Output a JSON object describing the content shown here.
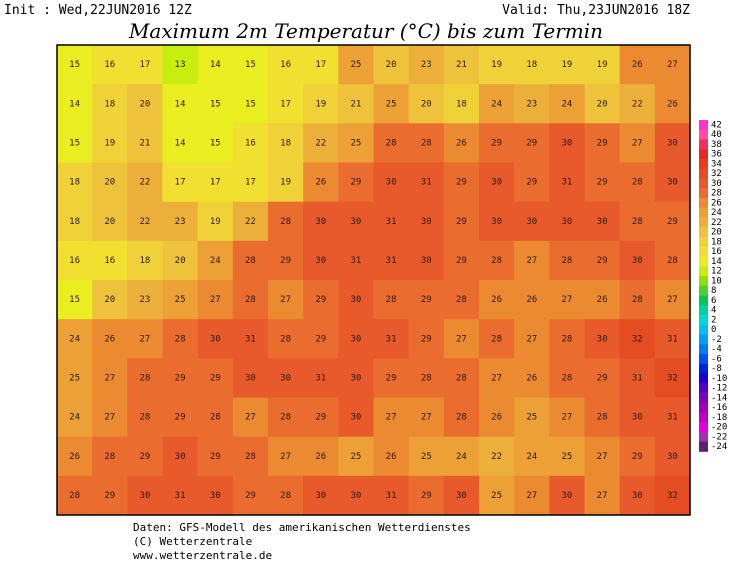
{
  "header": {
    "init": "Init : Wed,22JUN2016 12Z",
    "valid": "Valid: Thu,23JUN2016 18Z",
    "title": "Maximum 2m Temperatur (°C) bis zum Termin"
  },
  "map": {
    "values": [
      [
        15,
        16,
        17,
        13,
        14,
        15,
        16,
        17,
        25,
        20,
        23,
        21,
        19,
        18,
        19,
        19,
        26,
        27
      ],
      [
        14,
        18,
        20,
        14,
        15,
        15,
        17,
        19,
        21,
        25,
        20,
        18,
        24,
        23,
        24,
        20,
        22,
        26
      ],
      [
        15,
        19,
        21,
        14,
        15,
        16,
        18,
        22,
        25,
        28,
        28,
        26,
        29,
        29,
        30,
        29,
        27,
        30
      ],
      [
        18,
        20,
        22,
        17,
        17,
        17,
        19,
        26,
        29,
        30,
        31,
        29,
        30,
        29,
        31,
        29,
        28,
        30
      ],
      [
        18,
        20,
        22,
        23,
        19,
        22,
        28,
        30,
        30,
        31,
        30,
        29,
        30,
        30,
        30,
        30,
        28,
        29
      ],
      [
        16,
        16,
        18,
        20,
        24,
        28,
        29,
        30,
        31,
        31,
        30,
        29,
        28,
        27,
        28,
        29,
        30,
        28
      ],
      [
        15,
        20,
        23,
        25,
        27,
        28,
        27,
        29,
        30,
        28,
        29,
        28,
        26,
        26,
        27,
        26,
        28,
        27
      ],
      [
        24,
        26,
        27,
        28,
        30,
        31,
        28,
        29,
        30,
        31,
        29,
        27,
        28,
        27,
        28,
        30,
        32,
        31
      ],
      [
        25,
        27,
        28,
        29,
        29,
        30,
        30,
        31,
        30,
        29,
        28,
        28,
        27,
        26,
        28,
        29,
        31,
        32
      ],
      [
        24,
        27,
        28,
        29,
        28,
        27,
        28,
        29,
        30,
        27,
        27,
        28,
        26,
        25,
        27,
        28,
        30,
        31
      ],
      [
        26,
        28,
        29,
        30,
        29,
        28,
        27,
        26,
        25,
        26,
        25,
        24,
        22,
        24,
        25,
        27,
        29,
        30
      ],
      [
        28,
        29,
        30,
        31,
        30,
        29,
        28,
        30,
        30,
        31,
        29,
        30,
        25,
        27,
        30,
        27,
        30,
        32
      ]
    ]
  },
  "colorbar": {
    "ticks": [
      42,
      40,
      38,
      36,
      34,
      32,
      30,
      28,
      26,
      24,
      22,
      20,
      18,
      16,
      14,
      12,
      10,
      8,
      6,
      4,
      2,
      0,
      -2,
      -4,
      -6,
      -8,
      -10,
      -12,
      -14,
      -16,
      -18,
      -20,
      -22,
      -24
    ],
    "colors": [
      "#ff30d0",
      "#ff50a0",
      "#f03060",
      "#e82828",
      "#e83c1c",
      "#e44c22",
      "#e85a2c",
      "#ea6c2e",
      "#ec8a32",
      "#eca036",
      "#ecb03a",
      "#eec23a",
      "#f0d238",
      "#f2e030",
      "#eaee20",
      "#c8ee10",
      "#90e000",
      "#50d030",
      "#00c850",
      "#00d0a0",
      "#00d8d8",
      "#00c0f0",
      "#00a0f0",
      "#0080f0",
      "#0050f0",
      "#0020e0",
      "#2000d0",
      "#5000c8",
      "#8000c0",
      "#a000b0",
      "#c000c0",
      "#e000e0",
      "#a030b0",
      "#602070"
    ]
  },
  "footer": {
    "lines": [
      "Daten: GFS-Modell des amerikanischen Wetterdienstes",
      "(C) Wetterzentrale",
      "www.wetterzentrale.de"
    ]
  }
}
